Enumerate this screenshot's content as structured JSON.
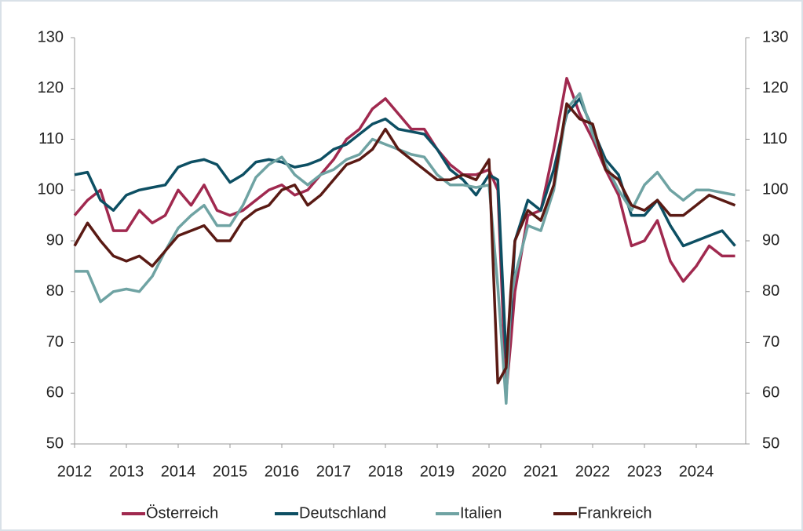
{
  "chart_data": {
    "type": "line",
    "x": [
      2012,
      2012.25,
      2012.5,
      2012.75,
      2013,
      2013.25,
      2013.5,
      2013.75,
      2014,
      2014.25,
      2014.5,
      2014.75,
      2015,
      2015.25,
      2015.5,
      2015.75,
      2016,
      2016.25,
      2016.5,
      2016.75,
      2017,
      2017.25,
      2017.5,
      2017.75,
      2018,
      2018.25,
      2018.5,
      2018.75,
      2019,
      2019.25,
      2019.5,
      2019.75,
      2020,
      2020.17,
      2020.33,
      2020.42,
      2020.5,
      2020.75,
      2021,
      2021.25,
      2021.5,
      2021.75,
      2022,
      2022.25,
      2022.5,
      2022.75,
      2023,
      2023.25,
      2023.5,
      2023.75,
      2024,
      2024.25,
      2024.5,
      2024.75
    ],
    "series": [
      {
        "name": "Österreich",
        "color": "#a0294f",
        "values": [
          95,
          98,
          100,
          92,
          92,
          96,
          93.5,
          95,
          100,
          97,
          101,
          96,
          95,
          96,
          98,
          100,
          101,
          99,
          100,
          103,
          106,
          110,
          112,
          116,
          118,
          115,
          112,
          112,
          108,
          105,
          103,
          103,
          104,
          100,
          60,
          70,
          80,
          95,
          96,
          108,
          122,
          115,
          110,
          104,
          99,
          89,
          90,
          94,
          86,
          82,
          85,
          89,
          87,
          87
        ]
      },
      {
        "name": "Deutschland",
        "color": "#0d4f63",
        "values": [
          103,
          103.5,
          98,
          96,
          99,
          100,
          100.5,
          101,
          104.5,
          105.5,
          106,
          105,
          101.5,
          103,
          105.5,
          106,
          105.5,
          104.5,
          105,
          106,
          108,
          109,
          111,
          113,
          114,
          112,
          111.5,
          111,
          108,
          104,
          102,
          99,
          103,
          102,
          67,
          75,
          90,
          98,
          96,
          104,
          115,
          118,
          112,
          106,
          103,
          95,
          95,
          98,
          93,
          89,
          90,
          91,
          92,
          89
        ]
      },
      {
        "name": "Italien",
        "color": "#6fa3a3",
        "values": [
          84,
          84,
          78,
          80,
          80.5,
          80,
          83,
          88,
          92.5,
          95,
          97,
          93,
          93,
          97,
          102.5,
          105,
          106.5,
          103,
          101,
          103,
          104,
          106,
          107,
          110,
          109,
          108,
          107,
          106.5,
          103,
          101,
          101,
          100.5,
          101,
          81,
          58,
          78,
          83,
          93,
          92,
          100,
          116,
          119,
          111,
          105,
          100,
          96,
          101,
          103.5,
          100,
          98,
          100,
          100,
          99.5,
          99
        ]
      },
      {
        "name": "Frankreich",
        "color": "#5a1a14",
        "values": [
          89,
          93.5,
          90,
          87,
          86,
          87,
          85,
          88,
          91,
          92,
          93,
          90,
          90,
          94,
          96,
          97,
          100,
          101,
          97,
          99,
          102,
          105,
          106,
          108,
          112,
          108,
          106,
          104,
          102,
          102,
          103,
          102,
          106,
          62,
          65,
          80,
          90,
          96,
          94,
          101,
          117,
          114,
          113,
          104,
          102,
          97,
          96,
          98,
          95,
          95,
          97,
          99,
          98,
          97
        ]
      }
    ],
    "xlim": [
      2012,
      2025
    ],
    "xticks": [
      2012,
      2013,
      2014,
      2015,
      2016,
      2017,
      2018,
      2019,
      2020,
      2021,
      2022,
      2023,
      2024
    ],
    "ylim": [
      50,
      130
    ],
    "yticks": [
      50,
      60,
      70,
      80,
      90,
      100,
      110,
      120,
      130
    ],
    "y2lim": [
      50,
      130
    ],
    "y2ticks": [
      50,
      60,
      70,
      80,
      90,
      100,
      110,
      120,
      130
    ],
    "legend": "bottom"
  }
}
